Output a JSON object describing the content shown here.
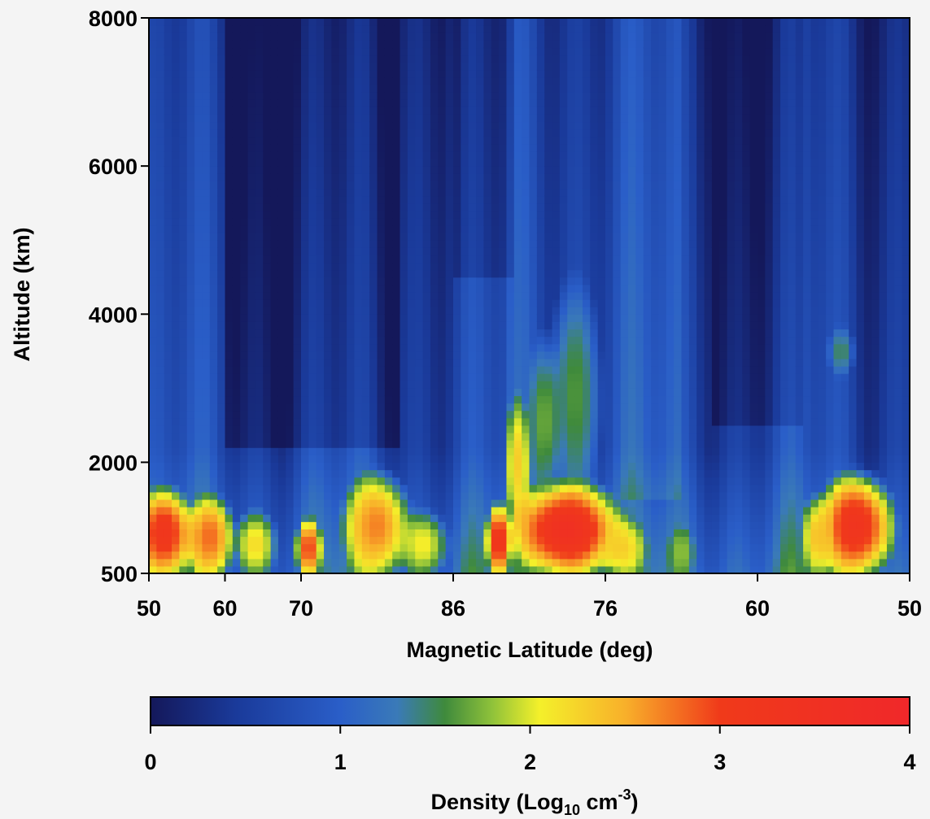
{
  "chart_data": {
    "type": "heatmap",
    "xlabel": "Magnetic Latitude  (deg)",
    "ylabel": "Altitude  (km)",
    "x_ticks": [
      "50",
      "60",
      "70",
      "86",
      "76",
      "60",
      "50"
    ],
    "x_tick_positions": [
      0,
      10,
      20,
      40,
      60,
      80,
      100
    ],
    "x_range": [
      0,
      100
    ],
    "y_ticks": [
      500,
      2000,
      4000,
      6000,
      8000
    ],
    "y_range": [
      500,
      8000
    ],
    "grid": false,
    "colorbar": {
      "label_main": "Density  (Log",
      "label_sub": "10",
      "label_unit": " cm",
      "label_sup": "-3",
      "label_close": ")",
      "ticks": [
        0,
        1,
        2,
        3,
        4
      ],
      "range": [
        0,
        4
      ],
      "stops": [
        {
          "v": 0.0,
          "c": "#14185a"
        },
        {
          "v": 0.45,
          "c": "#1a3a9a"
        },
        {
          "v": 1.0,
          "c": "#2a5ec8"
        },
        {
          "v": 1.3,
          "c": "#3a7ab8"
        },
        {
          "v": 1.55,
          "c": "#3f8a3c"
        },
        {
          "v": 1.8,
          "c": "#8fc23a"
        },
        {
          "v": 2.05,
          "c": "#f4f02a"
        },
        {
          "v": 2.5,
          "c": "#f8b02a"
        },
        {
          "v": 3.0,
          "c": "#f03a1a"
        },
        {
          "v": 4.0,
          "c": "#f0282a"
        }
      ]
    },
    "features": [
      {
        "x": 2,
        "w": 7,
        "y0": 500,
        "y1": 1600,
        "v": 3.2
      },
      {
        "x": 8,
        "w": 6,
        "y0": 500,
        "y1": 1500,
        "v": 2.8
      },
      {
        "x": 14,
        "w": 5,
        "y0": 500,
        "y1": 1300,
        "v": 2.2
      },
      {
        "x": 21,
        "w": 3,
        "y0": 500,
        "y1": 1200,
        "v": 3.0
      },
      {
        "x": 30,
        "w": 8,
        "y0": 500,
        "y1": 1800,
        "v": 2.7
      },
      {
        "x": 36,
        "w": 6,
        "y0": 500,
        "y1": 1300,
        "v": 2.1
      },
      {
        "x": 46,
        "w": 3,
        "y0": 500,
        "y1": 1400,
        "v": 3.3
      },
      {
        "x": 48.5,
        "w": 3,
        "y0": 1200,
        "y1": 2800,
        "v": 2.3
      },
      {
        "x": 55,
        "w": 13,
        "y0": 500,
        "y1": 1700,
        "v": 3.5
      },
      {
        "x": 62,
        "w": 6,
        "y0": 500,
        "y1": 1200,
        "v": 2.3
      },
      {
        "x": 70,
        "w": 3,
        "y0": 500,
        "y1": 1100,
        "v": 1.8
      },
      {
        "x": 93,
        "w": 9,
        "y0": 500,
        "y1": 1800,
        "v": 3.3
      },
      {
        "x": 88,
        "w": 4,
        "y0": 500,
        "y1": 1500,
        "v": 2.4
      },
      {
        "x": 56,
        "w": 6,
        "y0": 1500,
        "y1": 4300,
        "v": 1.6
      },
      {
        "x": 52,
        "w": 4,
        "y0": 1500,
        "y1": 3600,
        "v": 1.7
      },
      {
        "x": 91,
        "w": 3,
        "y0": 3200,
        "y1": 3800,
        "v": 1.5
      }
    ]
  }
}
